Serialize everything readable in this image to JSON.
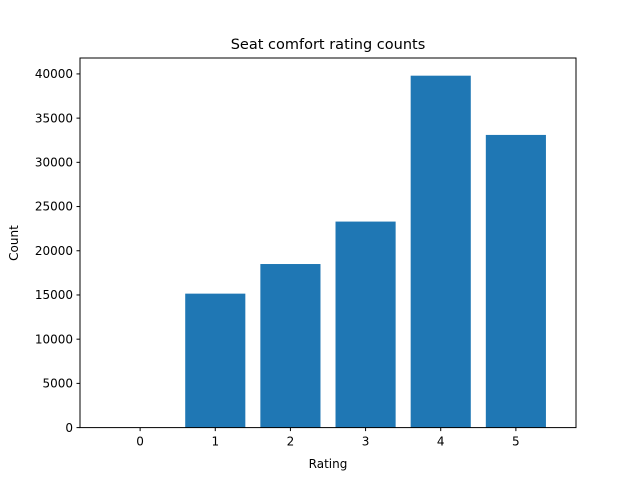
{
  "chart_data": {
    "type": "bar",
    "title": "Seat comfort rating counts",
    "xlabel": "Rating",
    "ylabel": "Count",
    "categories": [
      "0",
      "1",
      "2",
      "3",
      "4",
      "5"
    ],
    "values": [
      0,
      15150,
      18500,
      23300,
      39800,
      33100
    ],
    "ylim": [
      0,
      41800
    ],
    "yticks": [
      "0",
      "5000",
      "10000",
      "15000",
      "20000",
      "25000",
      "30000",
      "35000",
      "40000"
    ],
    "grid": false,
    "legend": false,
    "colors": {
      "bar": "#1f77b4",
      "axis": "#000000"
    }
  }
}
